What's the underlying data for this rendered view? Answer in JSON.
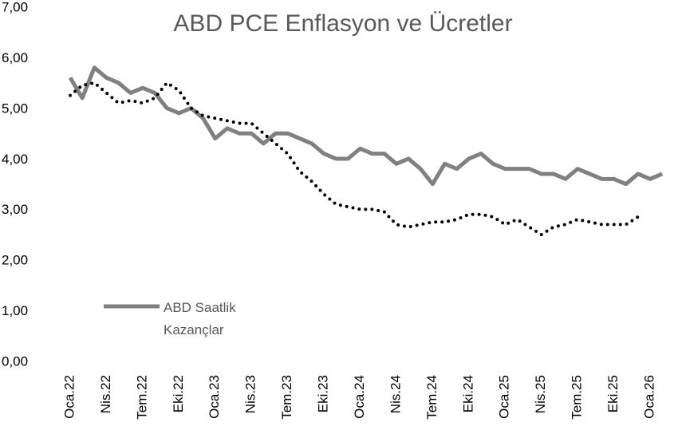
{
  "chart_data": {
    "type": "line",
    "title": "ABD PCE Enflasyon ve Ücretler",
    "categories": [
      "Oca.22",
      null,
      null,
      "Nis.22",
      null,
      null,
      "Tem.22",
      null,
      null,
      "Eki.22",
      null,
      null,
      "Oca.23",
      null,
      null,
      "Nis.23",
      null,
      null,
      "Tem.23",
      null,
      null,
      "Eki.23",
      null,
      null,
      "Oca.24",
      null,
      null,
      "Nis.24",
      null,
      null,
      "Tem.24",
      null,
      null,
      "Eki.24",
      null,
      null,
      "Oca.25",
      null,
      null,
      "Nis.25",
      null,
      null,
      "Tem.25",
      null,
      null,
      "Eki.25",
      null,
      null,
      "Oca.26",
      null
    ],
    "series": [
      {
        "name": "ABD Saatlik Kazançlar",
        "color": "#808080",
        "style": "solid",
        "values": [
          5.7,
          5.3,
          5.9,
          5.7,
          5.6,
          5.4,
          5.5,
          5.4,
          5.1,
          5.0,
          5.1,
          4.9,
          4.5,
          4.7,
          4.6,
          4.6,
          4.4,
          4.6,
          4.6,
          4.5,
          4.4,
          4.2,
          4.1,
          4.1,
          4.3,
          4.2,
          4.2,
          4.0,
          4.1,
          3.9,
          3.6,
          4.0,
          3.9,
          4.1,
          4.2,
          4.0,
          3.9,
          3.9,
          3.9,
          3.8,
          3.8,
          3.7,
          3.9,
          3.8,
          3.7,
          3.7,
          3.6,
          3.8,
          3.7,
          3.8
        ]
      },
      {
        "color": "#000000",
        "style": "dotted",
        "values": [
          5.35,
          5.55,
          5.6,
          5.4,
          5.2,
          5.25,
          5.2,
          5.3,
          5.6,
          5.45,
          5.1,
          4.95,
          4.9,
          4.85,
          4.8,
          4.8,
          4.6,
          4.4,
          4.2,
          3.85,
          3.65,
          3.4,
          3.2,
          3.15,
          3.1,
          3.1,
          3.05,
          2.8,
          2.75,
          2.8,
          2.85,
          2.85,
          2.9,
          3.0,
          3.0,
          2.95,
          2.8,
          2.9,
          2.75,
          2.6,
          2.75,
          2.8,
          2.9,
          2.85,
          2.8,
          2.8,
          2.8,
          2.95,
          null,
          null
        ]
      }
    ],
    "ylim": [
      0,
      7
    ],
    "yticks": [
      {
        "value": 0,
        "label": "0,00"
      },
      {
        "value": 1,
        "label": "1,00"
      },
      {
        "value": 2,
        "label": "2,00"
      },
      {
        "value": 3,
        "label": "3,00"
      },
      {
        "value": 4,
        "label": "4,00"
      },
      {
        "value": 5,
        "label": "5,00"
      },
      {
        "value": 6,
        "label": "6,00"
      },
      {
        "value": 7,
        "label": "7,00"
      }
    ],
    "grid": false,
    "legend": "lower left"
  }
}
